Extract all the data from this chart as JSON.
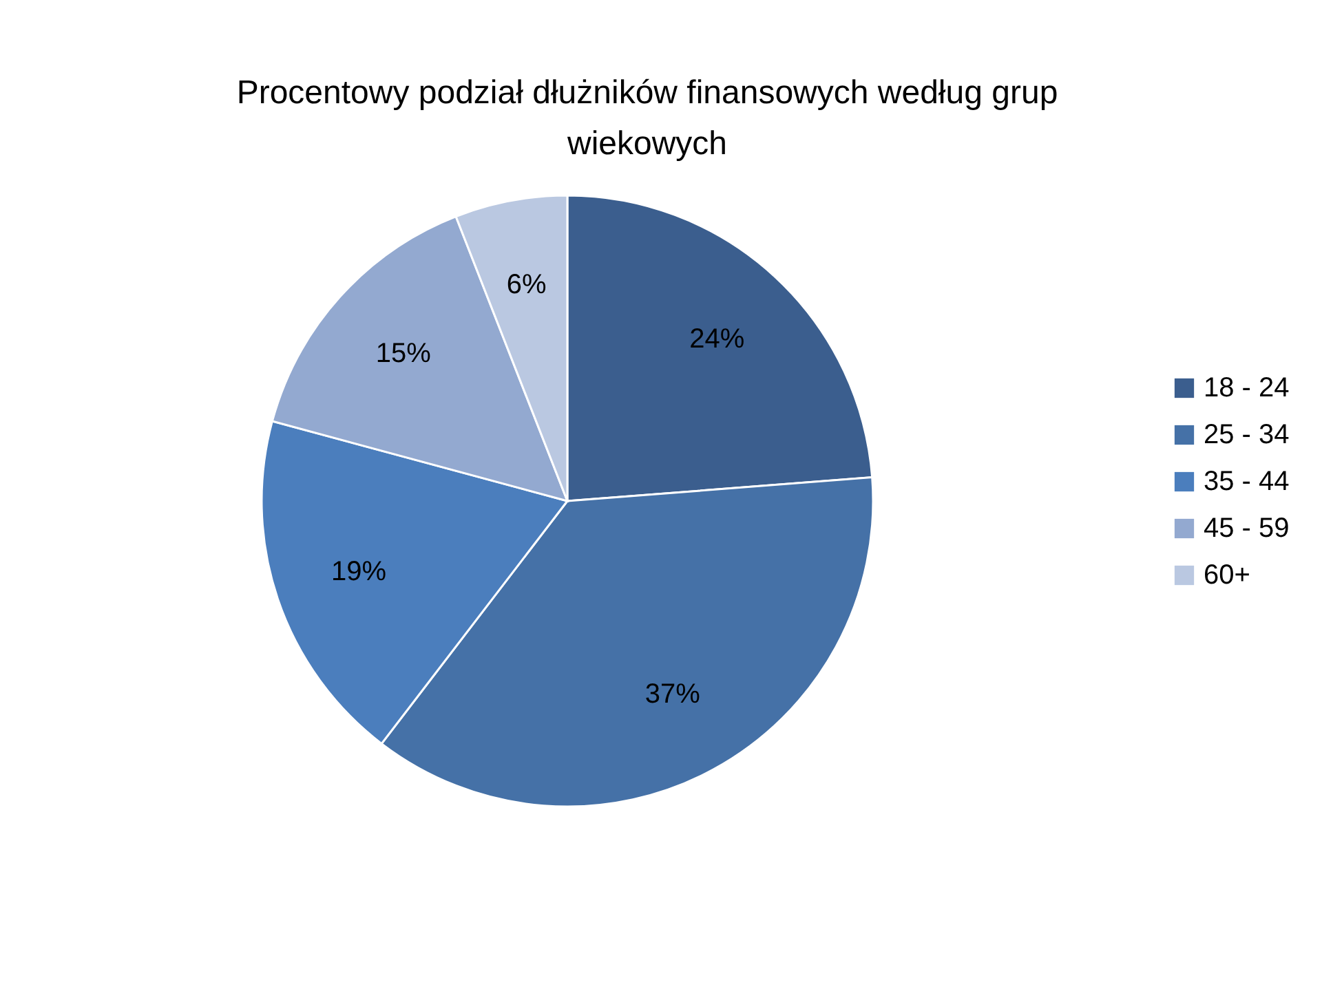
{
  "chart_data": {
    "type": "pie",
    "title": "Procentowy podział dłużników finansowych według grup wiekowych",
    "categories": [
      "18 - 24",
      "25 - 34",
      "35 - 44",
      "45 - 59",
      "60+"
    ],
    "values": [
      24,
      37,
      19,
      15,
      6
    ],
    "colors": [
      "#3b5e8e",
      "#4571a7",
      "#4b7ebd",
      "#93a9d0",
      "#bac8e1"
    ],
    "value_labels": [
      "24%",
      "37%",
      "19%",
      "15%",
      "6%"
    ],
    "legend": "right"
  }
}
